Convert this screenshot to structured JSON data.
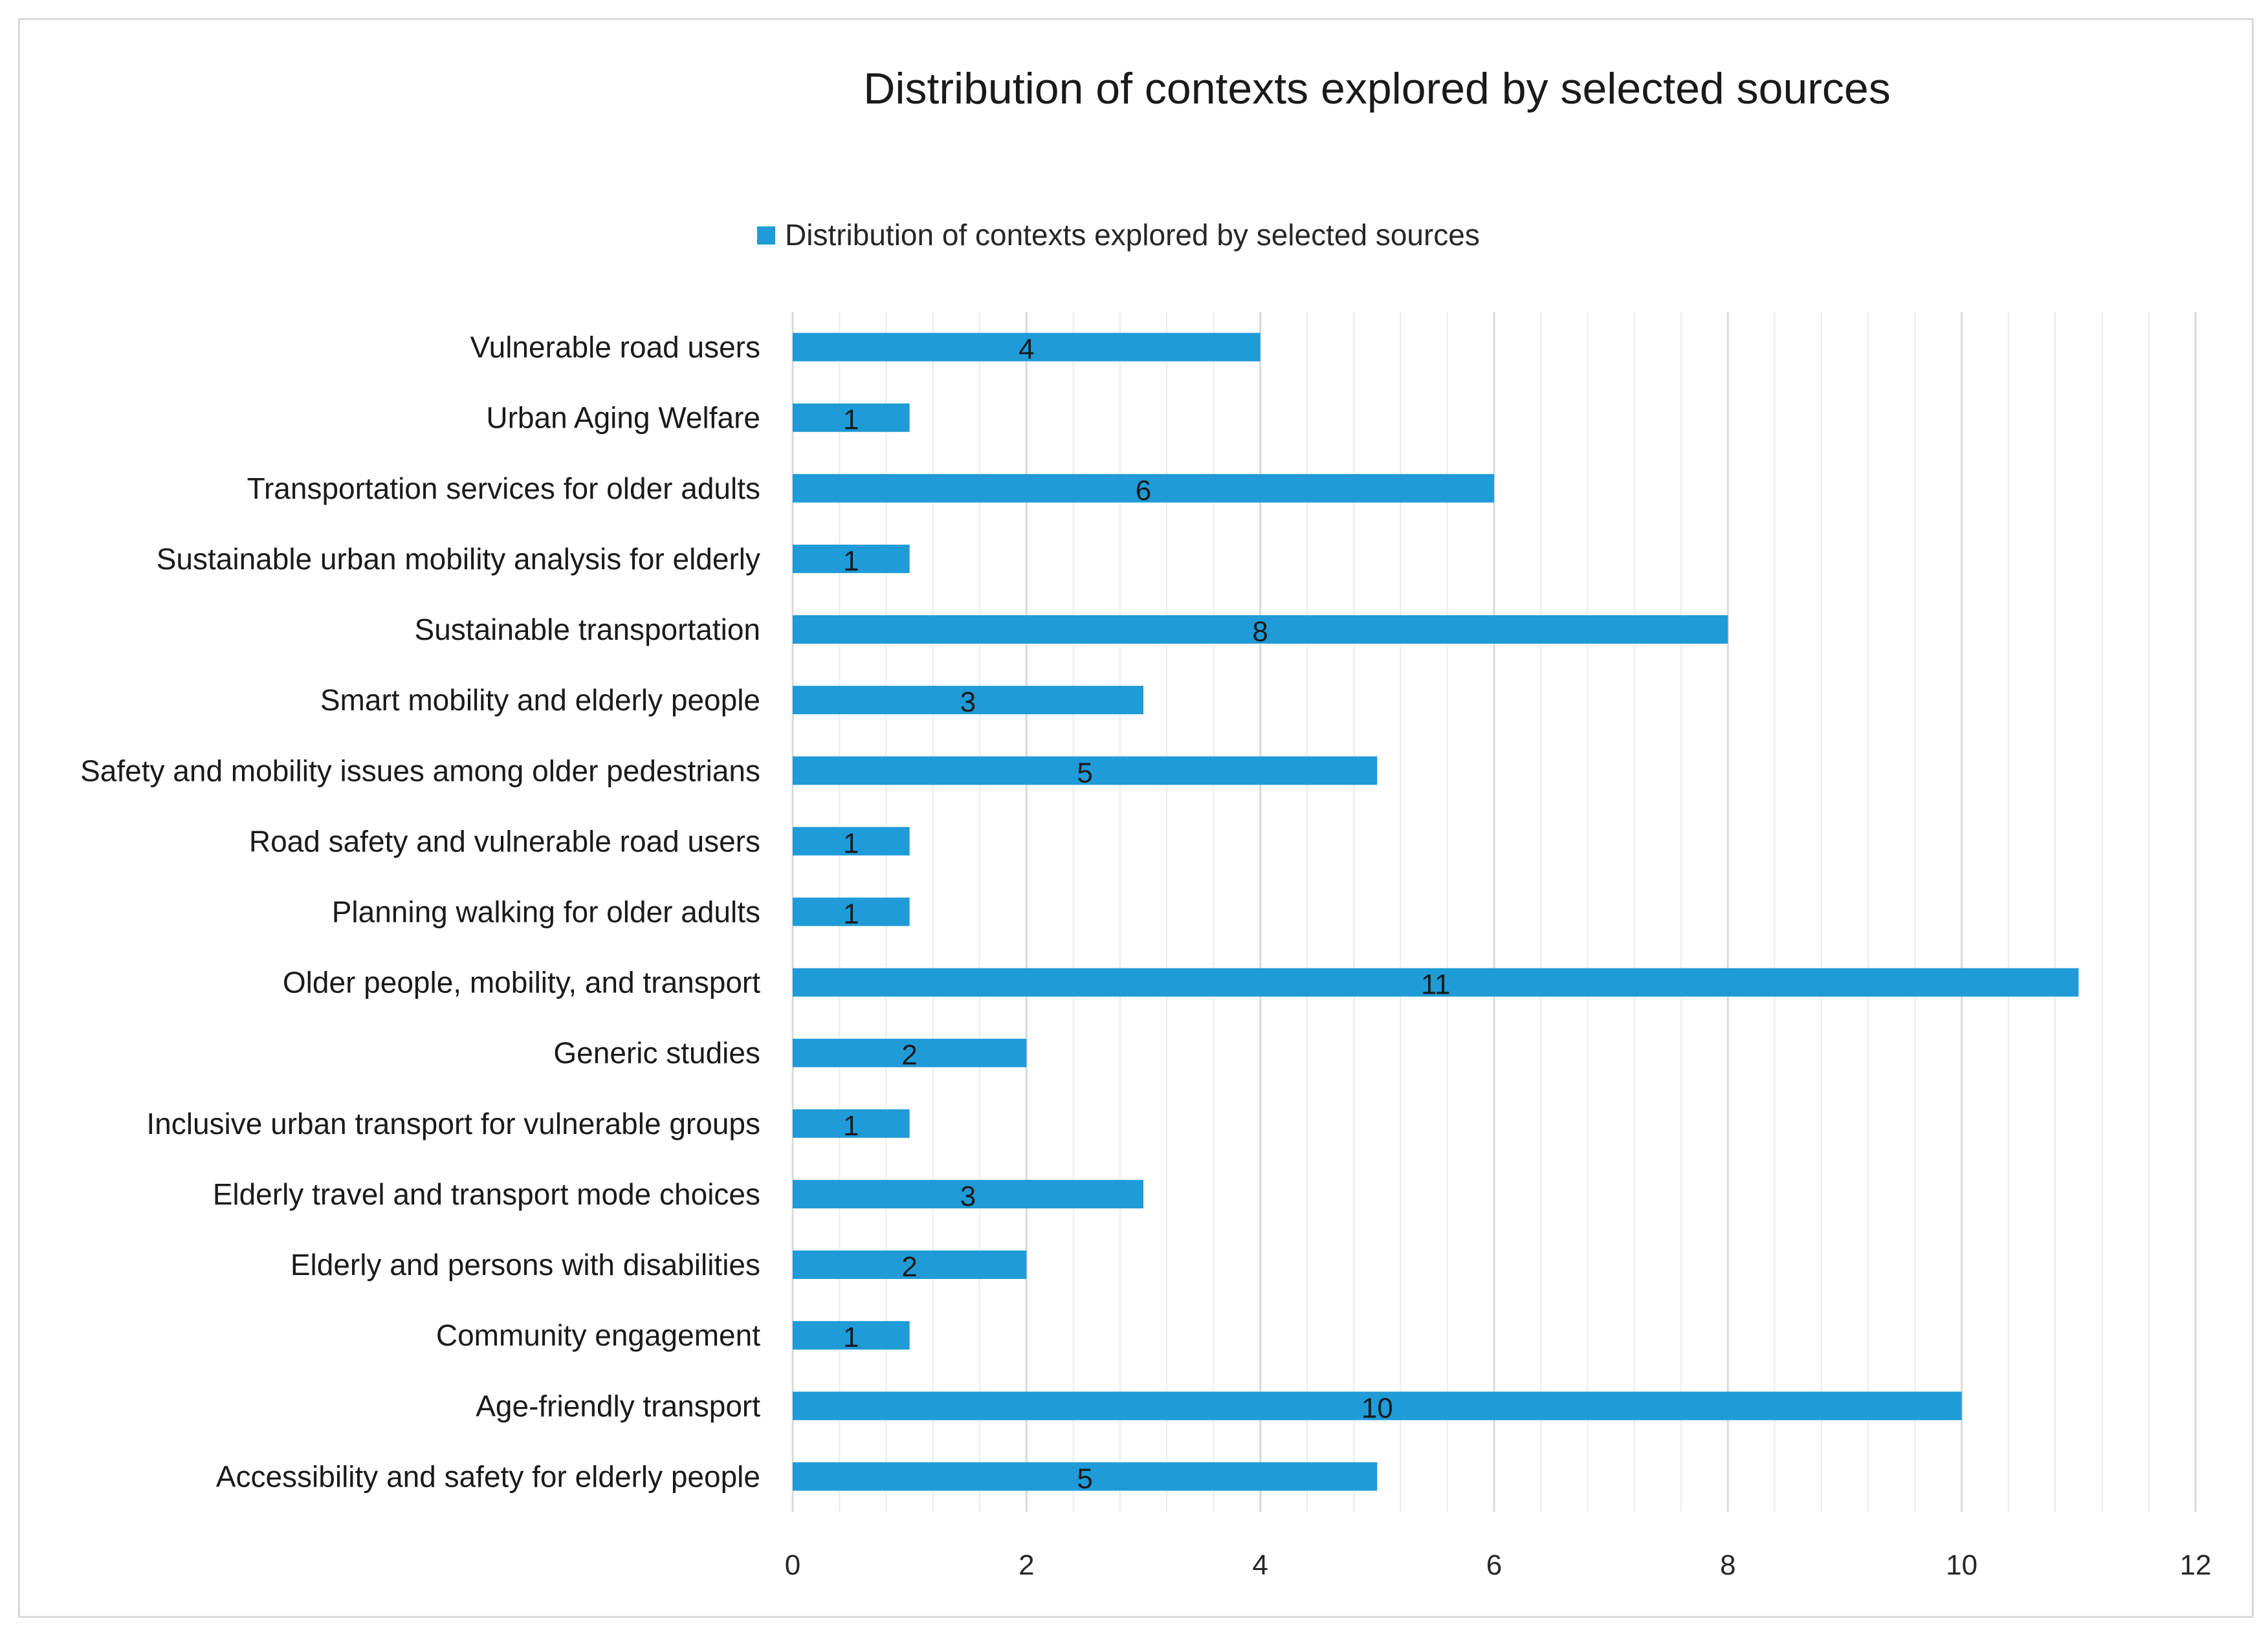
{
  "chart_data": {
    "type": "bar",
    "orientation": "horizontal",
    "title": "Distribution of contexts explored by selected sources",
    "legend": {
      "position": "top",
      "entries": [
        {
          "name": "Distribution of contexts explored by selected sources",
          "color": "#1f9bd7"
        }
      ]
    },
    "categories": [
      "Vulnerable road users",
      "Urban Aging Welfare",
      "Transportation services for older adults",
      "Sustainable urban mobility analysis for elderly",
      "Sustainable transportation",
      "Smart mobility and elderly people",
      "Safety and mobility issues among older pedestrians",
      "Road safety and vulnerable road users",
      "Planning walking for older adults",
      "Older people, mobility, and transport",
      "Generic studies",
      "Inclusive urban transport for vulnerable groups",
      "Elderly travel and transport mode choices",
      "Elderly and persons with disabilities",
      "Community engagement",
      "Age-friendly transport",
      "Accessibility and safety for elderly people"
    ],
    "series": [
      {
        "name": "Distribution of contexts explored by selected sources",
        "values": [
          4,
          1,
          6,
          1,
          8,
          3,
          5,
          1,
          1,
          11,
          2,
          1,
          3,
          2,
          1,
          10,
          5
        ]
      }
    ],
    "xlim": [
      0,
      12
    ],
    "x_ticks": [
      0,
      2,
      4,
      6,
      8,
      10,
      12
    ],
    "minor_step": 0.4,
    "grid": true,
    "data_labels": true,
    "colors": {
      "bar": "#1f9bd7",
      "grid": "#d9d9d9",
      "frame": "#d9d9d9"
    }
  }
}
